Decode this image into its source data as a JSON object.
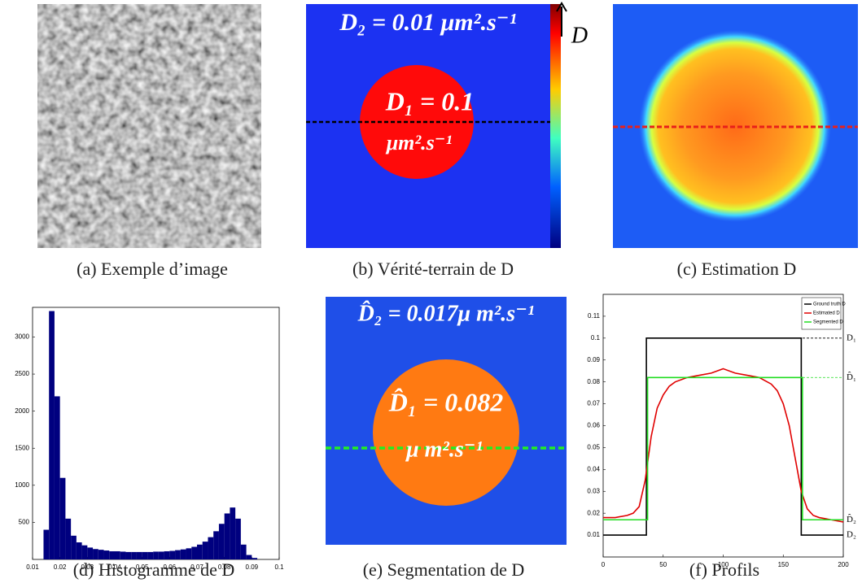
{
  "captions": [
    "(a) Exemple d’image",
    "(b) Vérité-terrain de D",
    "(c) Estimation D",
    "(d) Histogramme de D",
    "(e) Segmentation de D",
    "(f) Profils"
  ],
  "panel_b": {
    "colorbar_label": "D",
    "outer": "D₂ = 0.01 μm².s⁻¹",
    "inner": [
      "D₁ = 0.1",
      "μm².s⁻¹"
    ]
  },
  "panel_e": {
    "outer": "D̂₂ = 0.017μ m².s⁻¹",
    "inner": [
      "D̂₁ = 0.082",
      "μ m².s⁻¹"
    ]
  },
  "chart_data": [
    {
      "type": "histogram",
      "color": "#00007f",
      "bins": [
        0.01,
        0.012,
        0.014,
        0.016,
        0.018,
        0.02,
        0.022,
        0.024,
        0.026,
        0.028,
        0.03,
        0.032,
        0.034,
        0.036,
        0.038,
        0.04,
        0.042,
        0.044,
        0.046,
        0.048,
        0.05,
        0.052,
        0.054,
        0.056,
        0.058,
        0.06,
        0.062,
        0.064,
        0.066,
        0.068,
        0.07,
        0.072,
        0.074,
        0.076,
        0.078,
        0.08,
        0.082,
        0.084,
        0.086,
        0.088,
        0.09,
        0.092,
        0.094,
        0.096,
        0.098,
        0.1
      ],
      "values": [
        0,
        0,
        400,
        3350,
        2200,
        1100,
        550,
        320,
        230,
        190,
        160,
        140,
        130,
        120,
        110,
        110,
        105,
        100,
        100,
        100,
        100,
        100,
        105,
        105,
        110,
        115,
        125,
        135,
        150,
        170,
        200,
        240,
        300,
        380,
        480,
        620,
        700,
        550,
        200,
        60,
        20,
        0,
        0,
        0,
        0
      ],
      "xlim": [
        0.01,
        0.1
      ],
      "xticks": [
        0.01,
        0.02,
        0.03,
        0.04,
        0.05,
        0.06,
        0.07,
        0.08,
        0.09,
        0.1
      ],
      "ylim": [
        0,
        3400
      ],
      "yticks": [
        500,
        1000,
        1500,
        2000,
        2500,
        3000
      ]
    },
    {
      "type": "line",
      "legend": "top-right",
      "xlim": [
        0,
        200
      ],
      "xticks": [
        0,
        50,
        100,
        150,
        200
      ],
      "ylim": [
        0,
        0.12
      ],
      "yticks": [
        0.01,
        0.02,
        0.03,
        0.04,
        0.05,
        0.06,
        0.07,
        0.08,
        0.09,
        0.1,
        0.11
      ],
      "series": [
        {
          "name": "Ground truth D",
          "color": "#000000",
          "x": [
            0,
            36,
            36,
            165,
            165,
            200
          ],
          "values": [
            0.01,
            0.01,
            0.1,
            0.1,
            0.01,
            0.01
          ]
        },
        {
          "name": "Estimated D",
          "color": "#e00000",
          "x": [
            0,
            10,
            20,
            25,
            30,
            35,
            40,
            45,
            50,
            55,
            60,
            70,
            80,
            90,
            100,
            110,
            120,
            130,
            140,
            145,
            150,
            155,
            160,
            165,
            170,
            175,
            180,
            190,
            200
          ],
          "values": [
            0.018,
            0.018,
            0.019,
            0.02,
            0.023,
            0.035,
            0.055,
            0.068,
            0.074,
            0.078,
            0.08,
            0.082,
            0.083,
            0.084,
            0.086,
            0.084,
            0.083,
            0.082,
            0.079,
            0.076,
            0.07,
            0.06,
            0.045,
            0.03,
            0.022,
            0.019,
            0.018,
            0.017,
            0.016
          ]
        },
        {
          "name": "Segmented D",
          "color": "#22dd22",
          "x": [
            0,
            37,
            37,
            166,
            166,
            200
          ],
          "values": [
            0.017,
            0.017,
            0.082,
            0.082,
            0.017,
            0.017
          ]
        }
      ],
      "annotations": [
        {
          "text": "D₁",
          "y": 0.1,
          "color": "#000000"
        },
        {
          "text": "D̂₁",
          "y": 0.082,
          "color": "#22dd22"
        },
        {
          "text": "D̂₂",
          "y": 0.017,
          "color": "#22dd22"
        },
        {
          "text": "D₂",
          "y": 0.01,
          "color": "#000000"
        }
      ]
    }
  ]
}
